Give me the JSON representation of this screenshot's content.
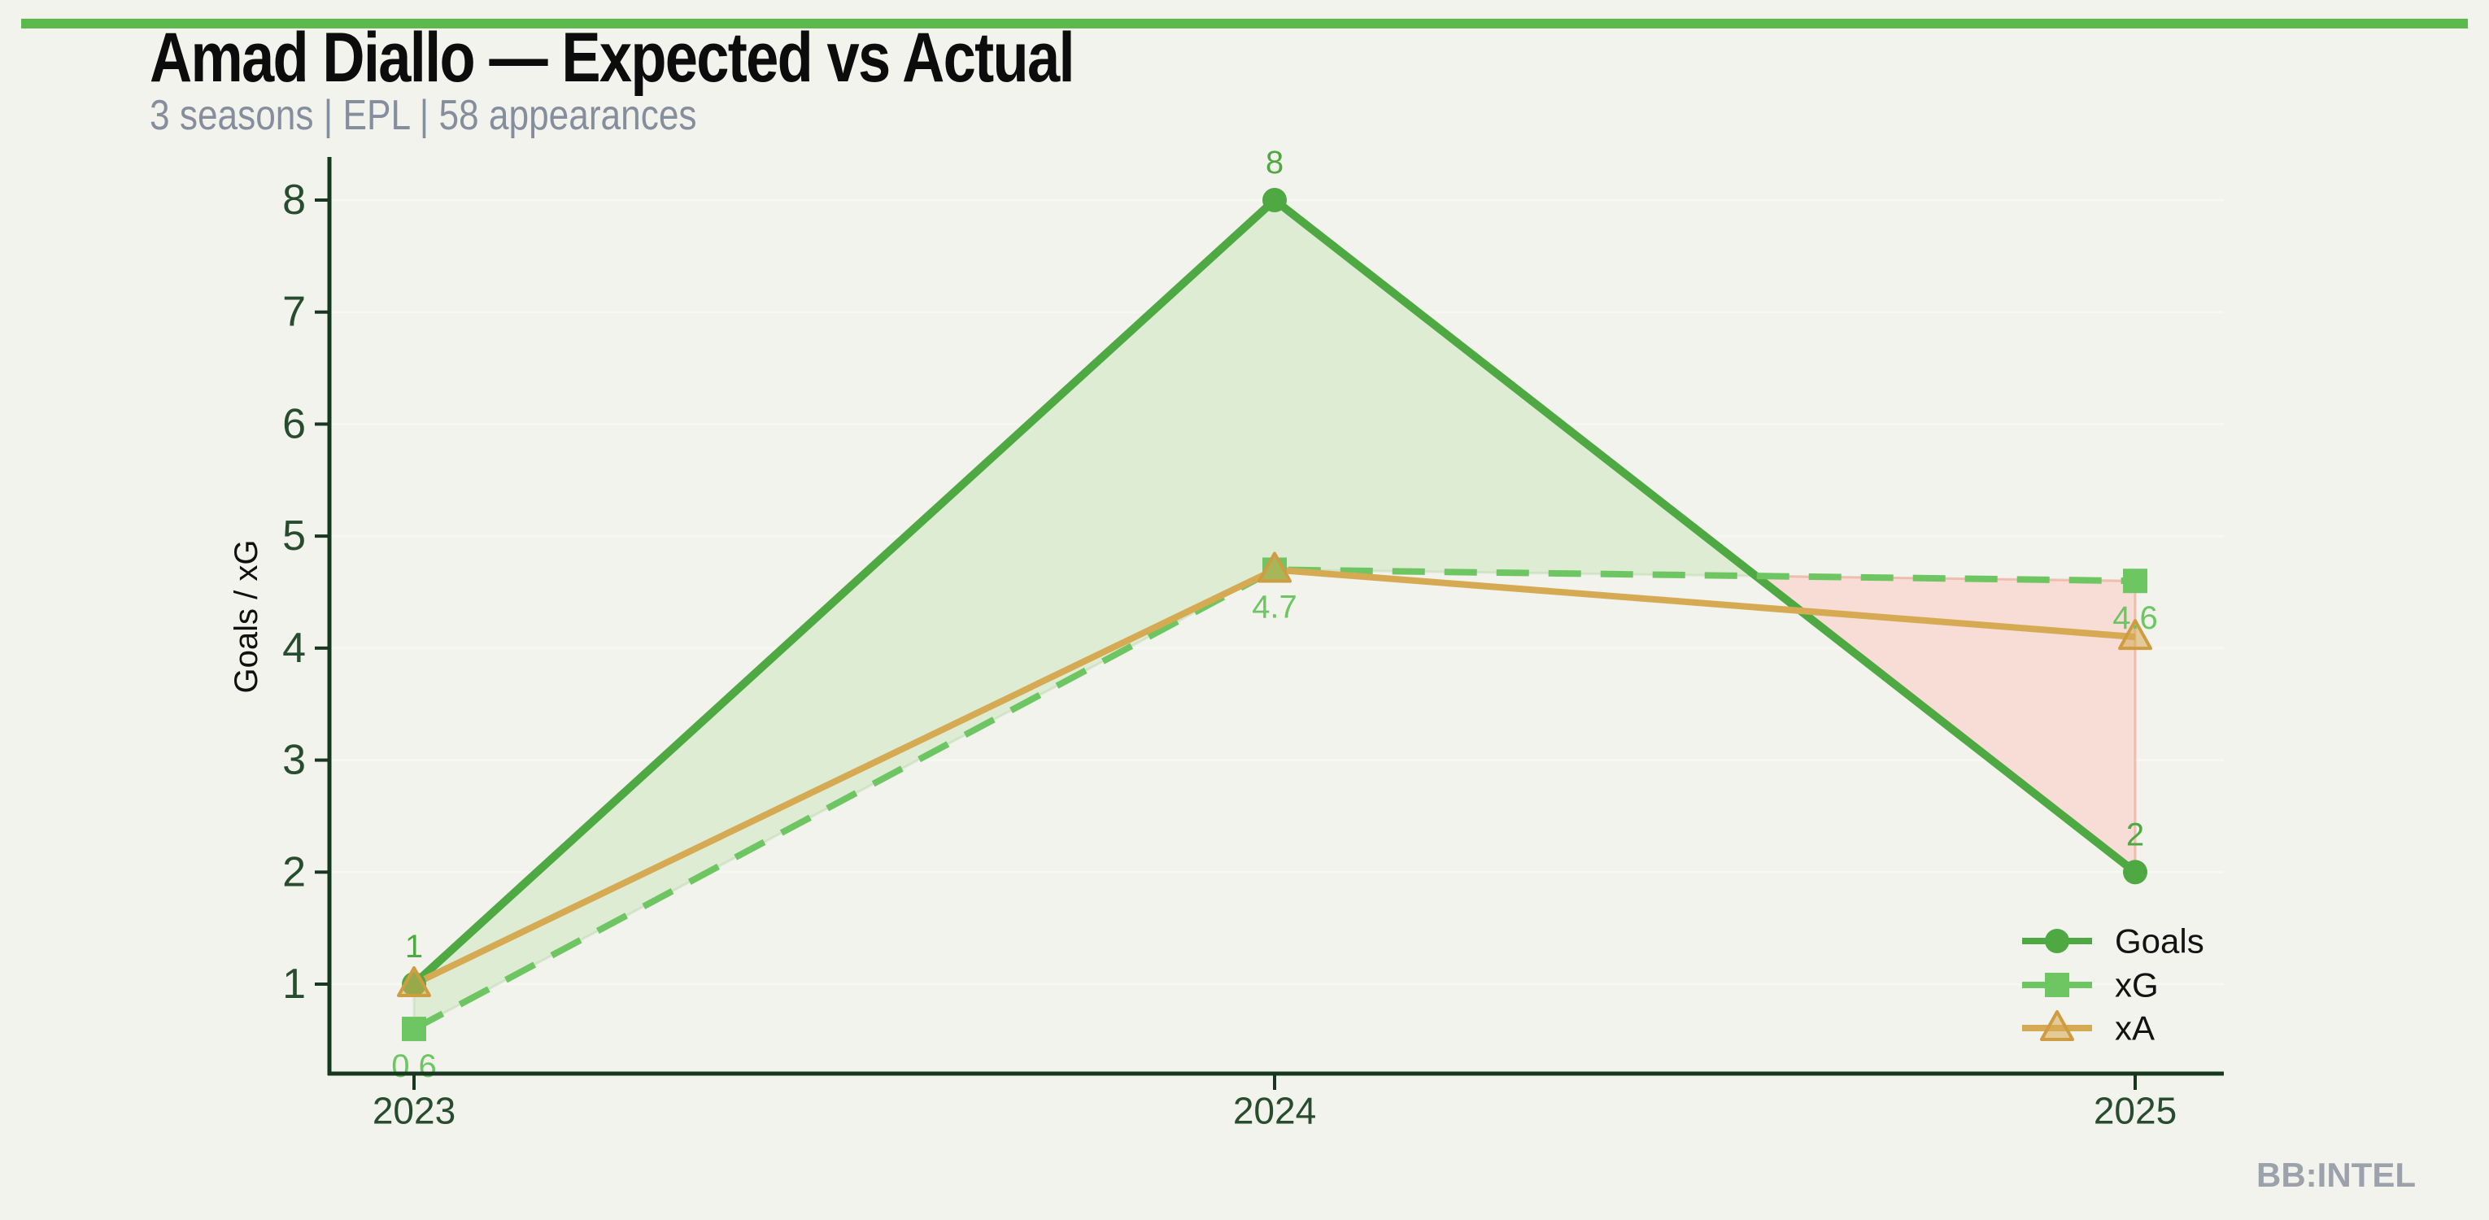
{
  "page": {
    "background_color": "#f2f3ec",
    "accent_bar_color": "#5cb94b"
  },
  "header": {
    "title": "Amad Diallo — Expected vs Actual",
    "subtitle": "3 seasons | EPL | 58 appearances"
  },
  "branding": {
    "watermark": "BB:INTEL"
  },
  "chart_data": {
    "type": "line",
    "title": "Amad Diallo — Expected vs Actual",
    "categories": [
      "2023",
      "2024",
      "2025"
    ],
    "series": [
      {
        "name": "Goals",
        "values": [
          1,
          8,
          2
        ],
        "color": "#4fa942",
        "line_style": "solid",
        "marker": "circle",
        "point_labels": [
          "1",
          "8",
          "2"
        ],
        "label_side": "above"
      },
      {
        "name": "xG",
        "values": [
          0.6,
          4.7,
          4.6
        ],
        "color": "#6ec662",
        "line_style": "dashed",
        "marker": "square",
        "point_labels": [
          "0.6",
          "4.7",
          "4.6"
        ],
        "label_side": "below"
      },
      {
        "name": "xA",
        "values": [
          1.0,
          4.7,
          4.1
        ],
        "color": "#d6aa52",
        "line_style": "solid",
        "marker": "triangle",
        "point_labels": null,
        "label_side": null
      }
    ],
    "xlabel": "",
    "ylabel": "Goals / xG",
    "yticks": [
      1,
      2,
      3,
      4,
      5,
      6,
      7,
      8
    ],
    "ylim": [
      0.2,
      8.4
    ],
    "grid": "horizontal-faint",
    "gridline_color": "#f7f8f1",
    "axis_color": "#17381f",
    "tick_label_color": "#274c2e",
    "legend": {
      "entries": [
        "Goals",
        "xG",
        "xA"
      ],
      "position": "lower-right",
      "text_color": "#131313"
    },
    "fill_between": {
      "upper_series": "Goals",
      "lower_series": "xG",
      "above_color": "#deecd4",
      "above_edge": "rgba(150,195,130,0.25)",
      "below_color": "#f8dcd6",
      "below_edge": "rgba(231,140,118,0.45)"
    }
  }
}
